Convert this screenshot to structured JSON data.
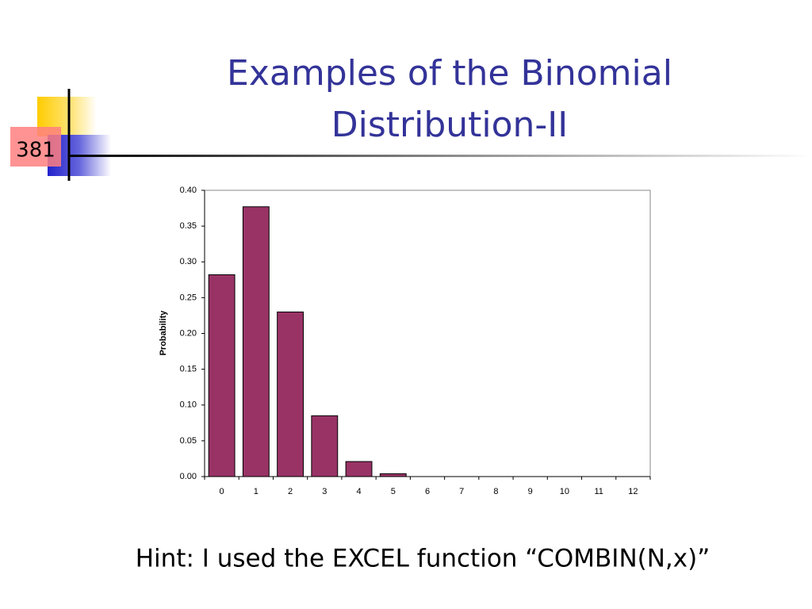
{
  "slide": {
    "title_lines": [
      "Examples of the Binomial",
      "Distribution-II"
    ],
    "number": "381",
    "hint": "Hint: I used the EXCEL function “COMBIN(N,x)”"
  },
  "chart_data": {
    "type": "bar",
    "categories": [
      "0",
      "1",
      "2",
      "3",
      "4",
      "5",
      "6",
      "7",
      "8",
      "9",
      "10",
      "11",
      "12"
    ],
    "values": [
      0.282,
      0.377,
      0.23,
      0.085,
      0.021,
      0.004,
      0,
      0,
      0,
      0,
      0,
      0,
      0
    ],
    "color": "#993366",
    "y_label": "Probability",
    "ylim": [
      0,
      0.4
    ],
    "yticks": [
      {
        "value": 0,
        "label": "0.00"
      },
      {
        "value": 0.05,
        "label": "0.05"
      },
      {
        "value": 0.1,
        "label": "0.10"
      },
      {
        "value": 0.15,
        "label": "0.15"
      },
      {
        "value": 0.2,
        "label": "0.20"
      },
      {
        "value": 0.25,
        "label": "0.25"
      },
      {
        "value": 0.3,
        "label": "0.30"
      },
      {
        "value": 0.35,
        "label": "0.35"
      },
      {
        "value": 0.4,
        "label": "0.40"
      }
    ],
    "grid": false
  }
}
